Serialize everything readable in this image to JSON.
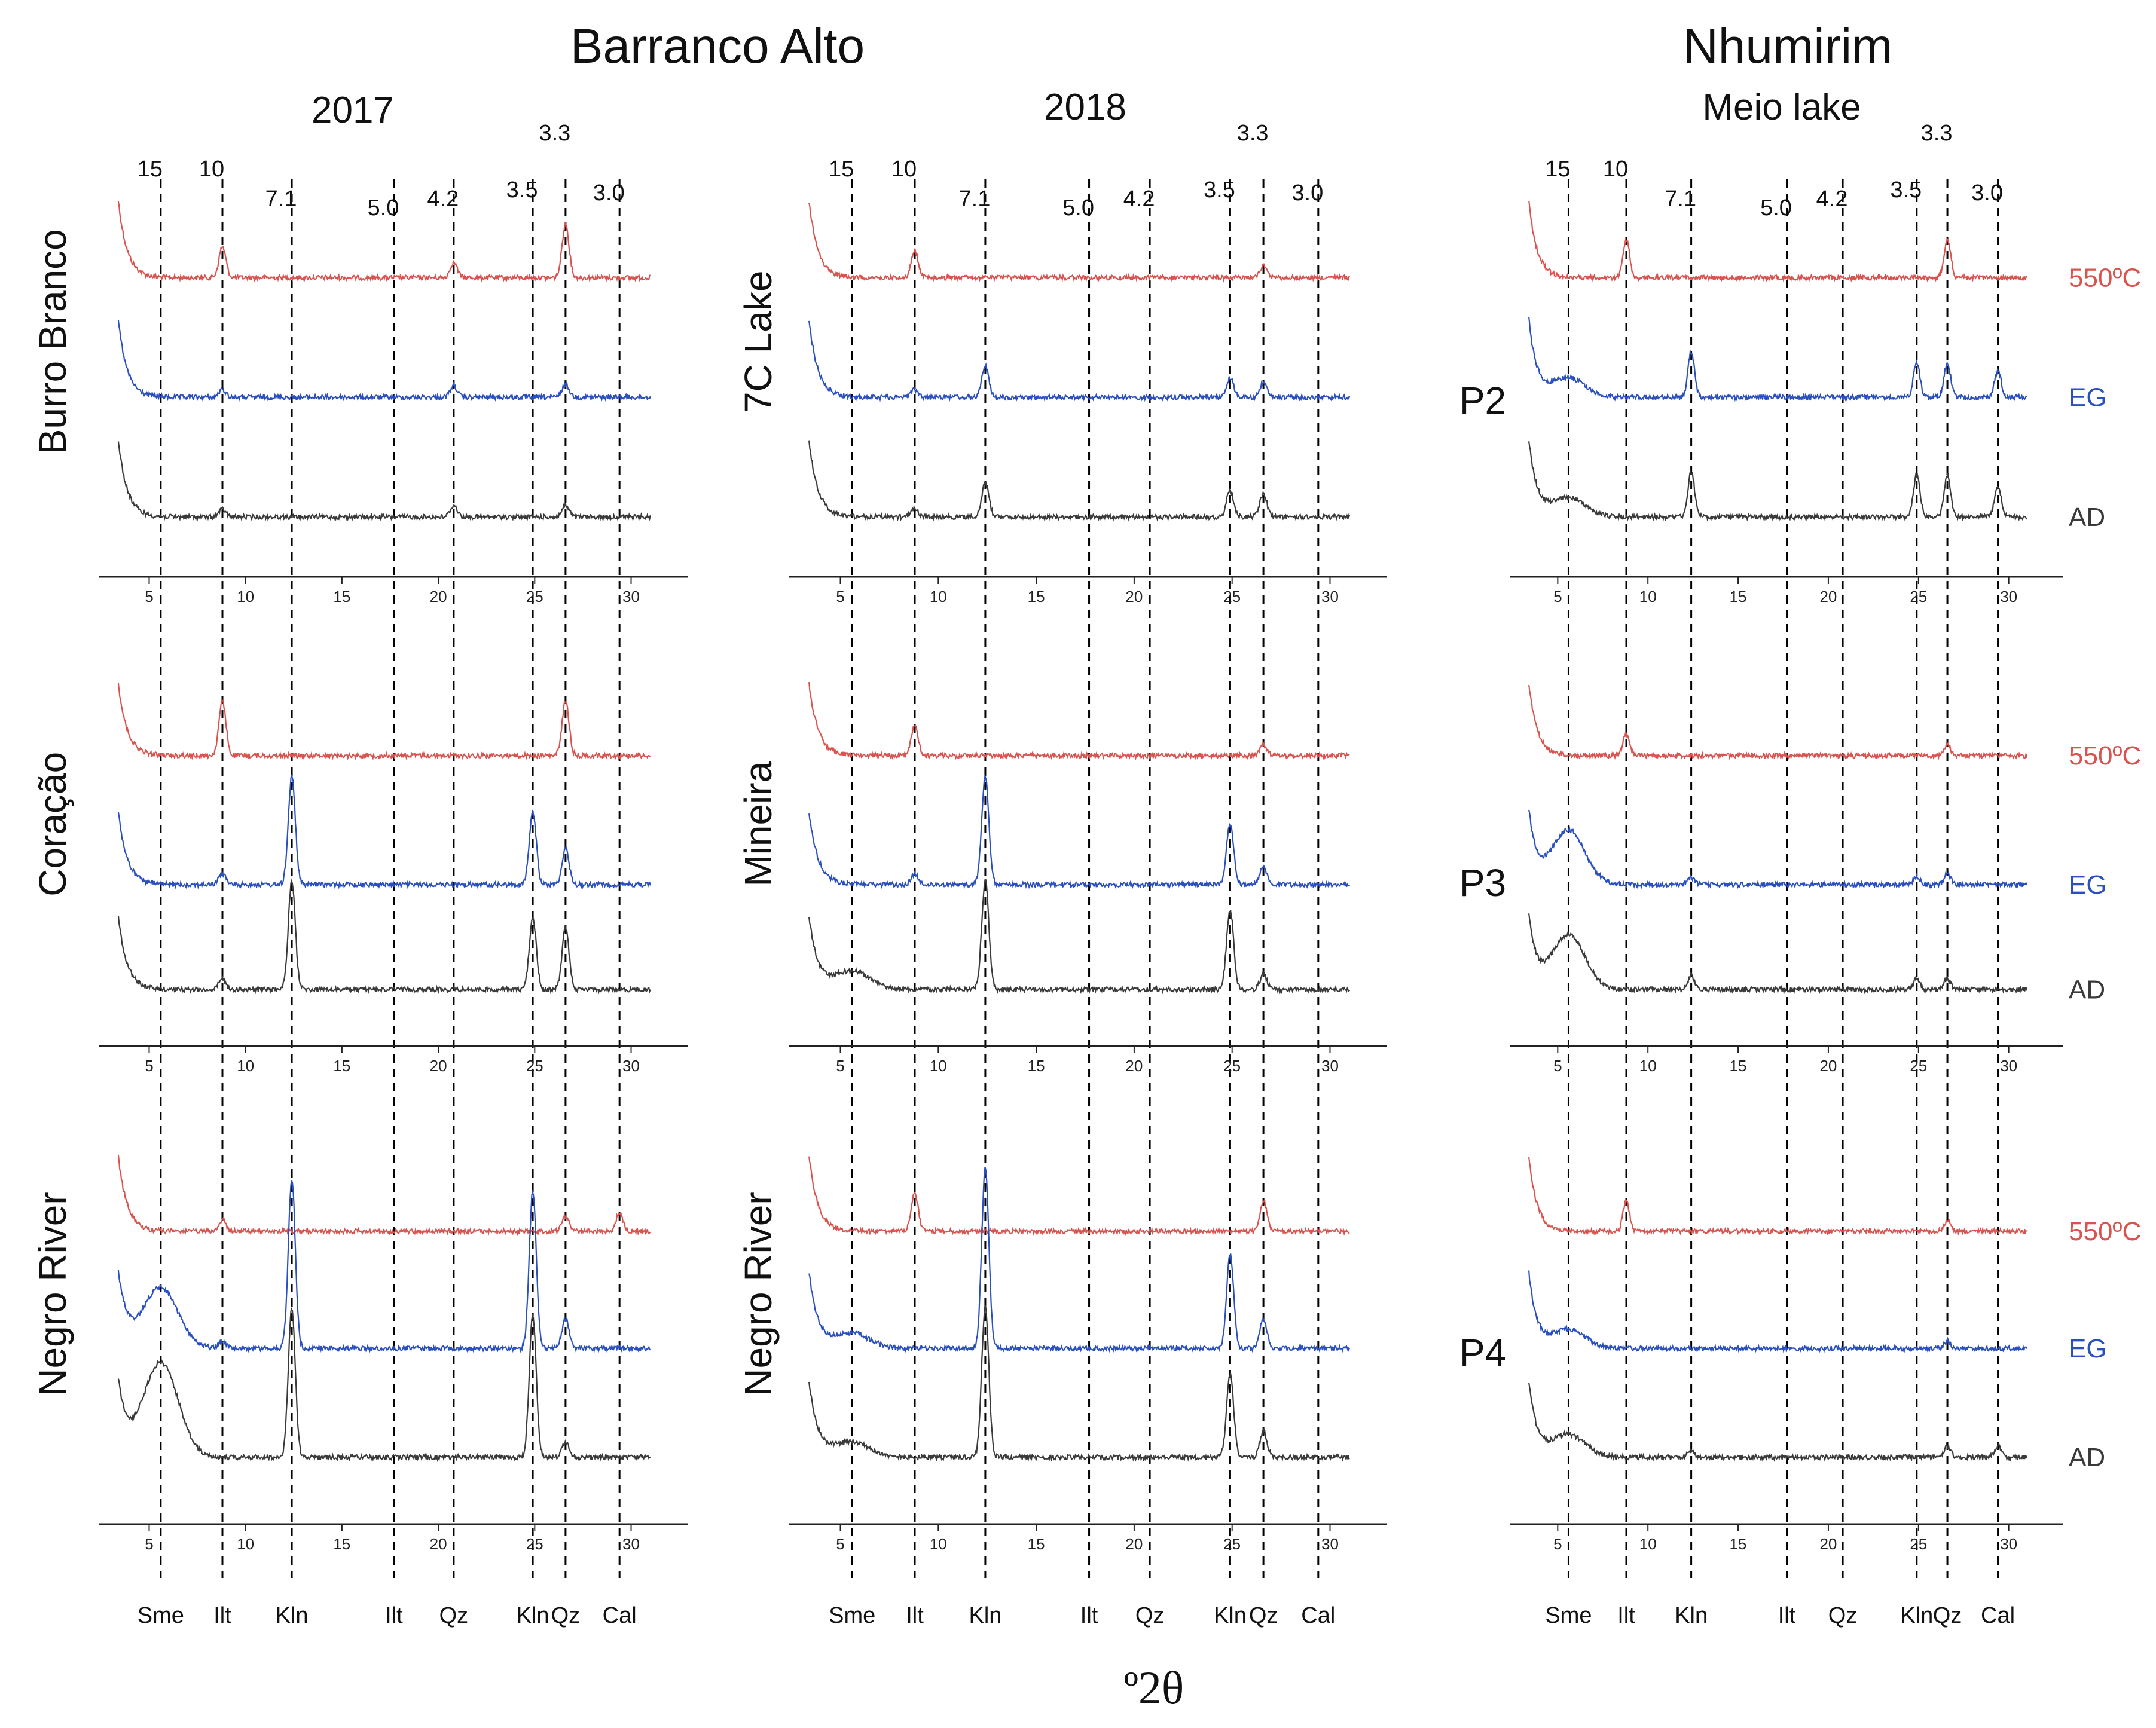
{
  "titles": {
    "barranco": "Barranco Alto",
    "nhumirim": "Nhumirim",
    "y2017": "2017",
    "y2018": "2018",
    "meio": "Meio lake",
    "xaxis": "º2θ"
  },
  "colors": {
    "heated_550C": "#d9534f",
    "glycolated_EG": "#2a4fbf",
    "air_dried_AD": "#3a3a3a",
    "reference_lines": "#000000"
  },
  "chart_data": {
    "type": "line",
    "description_units": "X-ray diffractograms, intensity (arbitrary) vs º2θ; reference lines labelled with d-spacing (Å) and mineral",
    "xlim": [
      3,
      32
    ],
    "x_ticks": [
      5,
      10,
      15,
      20,
      25,
      30
    ],
    "reference_lines": [
      {
        "two_theta": 5.6,
        "d": "15",
        "mineral": "Sme"
      },
      {
        "two_theta": 8.8,
        "d": "10",
        "mineral": "Ilt"
      },
      {
        "two_theta": 12.4,
        "d": "7.1",
        "mineral": "Kln"
      },
      {
        "two_theta": 17.7,
        "d": "5.0",
        "mineral": "Ilt"
      },
      {
        "two_theta": 20.8,
        "d": "4.2",
        "mineral": "Qz"
      },
      {
        "two_theta": 24.9,
        "d": "3.5",
        "mineral": "Kln"
      },
      {
        "two_theta": 26.6,
        "d": "3.3",
        "mineral": "Qz"
      },
      {
        "two_theta": 29.4,
        "d": "3.0",
        "mineral": "Cal"
      }
    ],
    "treatments": [
      "550ºC",
      "EG",
      "AD"
    ],
    "columns": [
      {
        "site": "Barranco Alto",
        "year": "2017",
        "panels": [
          {
            "sample": "Burro Branco",
            "peaks": {
              "550ºC": {
                "8.8": 0.8,
                "20.8": 0.4,
                "26.6": 1.4
              },
              "EG": {
                "8.8": 0.2,
                "20.8": 0.3,
                "26.6": 0.35
              },
              "AD": {
                "8.8": 0.2,
                "20.8": 0.3,
                "26.6": 0.3
              }
            }
          },
          {
            "sample": "Coração",
            "peaks": {
              "550ºC": {
                "8.8": 1.5,
                "26.6": 1.5
              },
              "EG": {
                "8.8": 0.3,
                "12.4": 3.0,
                "24.9": 2.0,
                "26.6": 1.0
              },
              "AD": {
                "8.8": 0.3,
                "12.4": 3.0,
                "24.9": 2.0,
                "26.6": 1.7
              }
            }
          },
          {
            "sample": "Negro River",
            "peaks": {
              "550ºC": {
                "8.8": 0.3,
                "26.6": 0.4,
                "29.4": 0.5
              },
              "EG": {
                "5.6": 1.6,
                "8.8": 0.2,
                "12.4": 4.5,
                "24.9": 4.2,
                "26.6": 0.8
              },
              "AD": {
                "5.6": 2.5,
                "12.4": 4.0,
                "24.9": 3.8,
                "26.6": 0.4
              }
            }
          }
        ]
      },
      {
        "site": "Barranco Alto",
        "year": "2018",
        "panels": [
          {
            "sample": "7C Lake",
            "peaks": {
              "550ºC": {
                "8.8": 0.7,
                "26.6": 0.3
              },
              "EG": {
                "8.8": 0.2,
                "12.4": 0.8,
                "24.9": 0.5,
                "26.6": 0.4
              },
              "AD": {
                "8.8": 0.2,
                "12.4": 0.9,
                "24.9": 0.7,
                "26.6": 0.6
              }
            }
          },
          {
            "sample": "Mineira",
            "peaks": {
              "550ºC": {
                "8.8": 0.8,
                "26.6": 0.3
              },
              "EG": {
                "8.8": 0.3,
                "12.4": 3.0,
                "24.9": 1.7,
                "26.6": 0.5
              },
              "AD": {
                "5.6": 0.5,
                "12.4": 3.0,
                "24.9": 2.2,
                "26.6": 0.4
              }
            }
          },
          {
            "sample": "Negro River",
            "peaks": {
              "550ºC": {
                "8.8": 1.0,
                "26.6": 0.8
              },
              "EG": {
                "5.6": 0.4,
                "12.4": 4.8,
                "24.9": 2.5,
                "26.6": 0.8
              },
              "AD": {
                "5.6": 0.4,
                "12.4": 4.0,
                "24.9": 2.2,
                "26.6": 0.7
              }
            }
          }
        ]
      },
      {
        "site": "Nhumirim",
        "year": "Meio lake",
        "panels": [
          {
            "sample": "P2",
            "peaks": {
              "550ºC": {
                "8.8": 1.0,
                "26.6": 1.0
              },
              "EG": {
                "5.6": 0.5,
                "12.4": 1.2,
                "24.9": 0.9,
                "26.6": 0.9,
                "29.4": 0.7
              },
              "AD": {
                "5.6": 0.5,
                "12.4": 1.2,
                "24.9": 1.1,
                "26.6": 1.1,
                "29.4": 0.8
              }
            }
          },
          {
            "sample": "P3",
            "peaks": {
              "550ºC": {
                "8.8": 0.6,
                "26.6": 0.3
              },
              "EG": {
                "5.6": 1.5,
                "12.4": 0.2,
                "24.9": 0.2,
                "26.6": 0.3
              },
              "AD": {
                "5.6": 1.5,
                "12.4": 0.4,
                "24.9": 0.3,
                "26.6": 0.3
              }
            }
          },
          {
            "sample": "P4",
            "peaks": {
              "550ºC": {
                "8.8": 0.8,
                "26.6": 0.3
              },
              "EG": {
                "5.6": 0.5,
                "26.6": 0.2
              },
              "AD": {
                "5.6": 0.6,
                "12.4": 0.2,
                "26.6": 0.3,
                "29.4": 0.3
              }
            }
          }
        ]
      }
    ]
  }
}
